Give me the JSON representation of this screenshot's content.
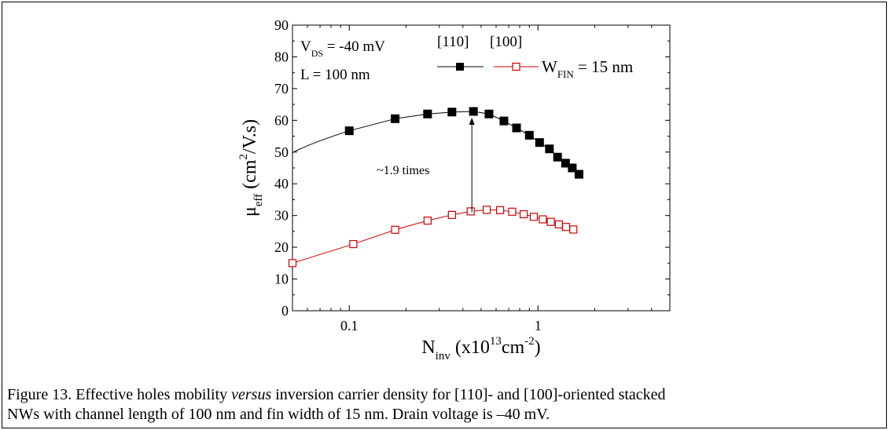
{
  "chart_data": {
    "type": "scatter",
    "x_scale": "log",
    "xlim": [
      0.05,
      5
    ],
    "ylim": [
      0,
      90
    ],
    "y_ticks": [
      0,
      10,
      20,
      30,
      40,
      50,
      60,
      70,
      80,
      90
    ],
    "x_major_ticks": [
      0.1,
      1
    ],
    "x_tick_labels": [
      "0.1",
      "1"
    ],
    "xlabel": {
      "main": "N",
      "sub": "inv",
      "pre": " (x10",
      "sup1": "13",
      "mid": "cm",
      "sup2": "-2",
      "post": ")"
    },
    "ylabel": {
      "main": "μ",
      "sub": "eff",
      "pre": " (cm",
      "sup": "2",
      "post": "/V.s)"
    },
    "grid": false,
    "annotations": {
      "vds": {
        "main": "V",
        "sub": "DS",
        "rest": " = -40 mV"
      },
      "length": "L = 100 nm",
      "ratio": "~1.9 times",
      "legend_headers": [
        "[110]",
        "[100]"
      ],
      "legend_label": {
        "main": "W",
        "sub": "FIN",
        "rest": " = 15 nm"
      }
    },
    "series": [
      {
        "orientation": "[110]",
        "marker": "filled-square",
        "color": "#000000",
        "x": [
          0.1,
          0.175,
          0.26,
          0.35,
          0.455,
          0.55,
          0.66,
          0.77,
          0.9,
          1.02,
          1.15,
          1.27,
          1.4,
          1.52,
          1.65
        ],
        "y": [
          56.7,
          60.5,
          62.0,
          62.6,
          62.8,
          62.0,
          59.8,
          57.6,
          55.3,
          53.0,
          51.0,
          48.4,
          46.5,
          45.0,
          43.0
        ]
      },
      {
        "orientation": "[100]",
        "marker": "open-square",
        "color": "#d00000",
        "x": [
          0.05,
          0.105,
          0.175,
          0.26,
          0.35,
          0.44,
          0.535,
          0.63,
          0.73,
          0.84,
          0.95,
          1.06,
          1.17,
          1.29,
          1.41,
          1.54
        ],
        "y": [
          15.0,
          21.0,
          25.5,
          28.4,
          30.2,
          31.3,
          31.8,
          31.7,
          31.2,
          30.4,
          29.6,
          28.8,
          28.0,
          27.2,
          26.4,
          25.6
        ]
      }
    ],
    "caption": [
      {
        "text": "Figure 13. Effective holes mobility ",
        "italic": false
      },
      {
        "text": "versus",
        "italic": true
      },
      {
        "text": " inversion carrier density for [110]- and [100]-oriented stacked",
        "italic": false
      },
      {
        "text": "NWs with channel length of 100 nm and fin width of 15 nm. Drain voltage is –40 mV.",
        "italic": false
      }
    ]
  }
}
